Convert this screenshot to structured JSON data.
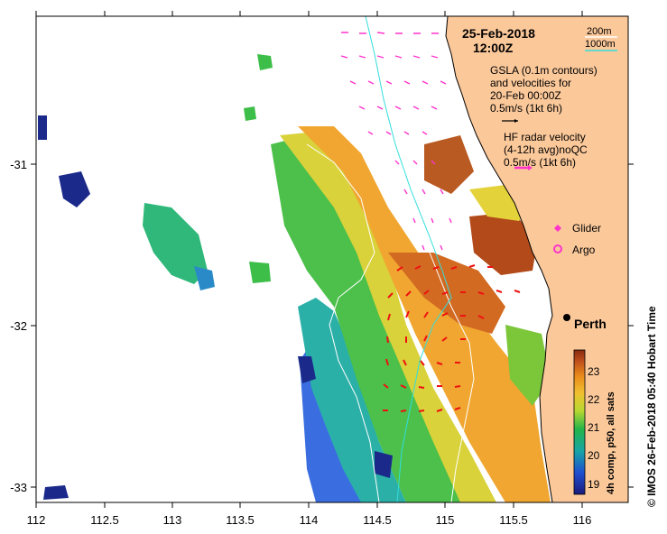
{
  "title": {
    "date": "25-Feb-2018",
    "time": "12:00Z"
  },
  "contours": {
    "label_200": "200m",
    "label_1000": "1000m",
    "color_200": "#ffffff",
    "color_1000": "#33dddd"
  },
  "gsla": {
    "line1": "GSLA (0.1m contours)",
    "line2": "and velocities for",
    "line3": "20-Feb 00:00Z",
    "scale": "0.5m/s (1kt 6h)"
  },
  "hf_radar": {
    "line1": "HF radar velocity",
    "line2": "(4-12h avg)noQC",
    "scale": "0.5m/s (1kt 6h)",
    "color": "#ff33cc"
  },
  "legend": {
    "glider": "Glider",
    "argo": "Argo"
  },
  "city": {
    "name": "Perth"
  },
  "colorbar": {
    "label": "4h comp, p50, all sats",
    "ticks": [
      "23",
      "22",
      "21",
      "20",
      "19"
    ]
  },
  "credit": "© IMOS 26-Feb-2018 05:40 Hobart Time",
  "axes": {
    "x_ticks": [
      "112",
      "112.5",
      "113",
      "113.5",
      "114",
      "114.5",
      "115",
      "115.5",
      "116"
    ],
    "y_ticks": [
      "-31",
      "-32",
      "-33"
    ]
  },
  "colors": {
    "land": "#fbc89a",
    "hf_arrow": "#ff33cc",
    "glider_arrow": "#ee1111"
  }
}
